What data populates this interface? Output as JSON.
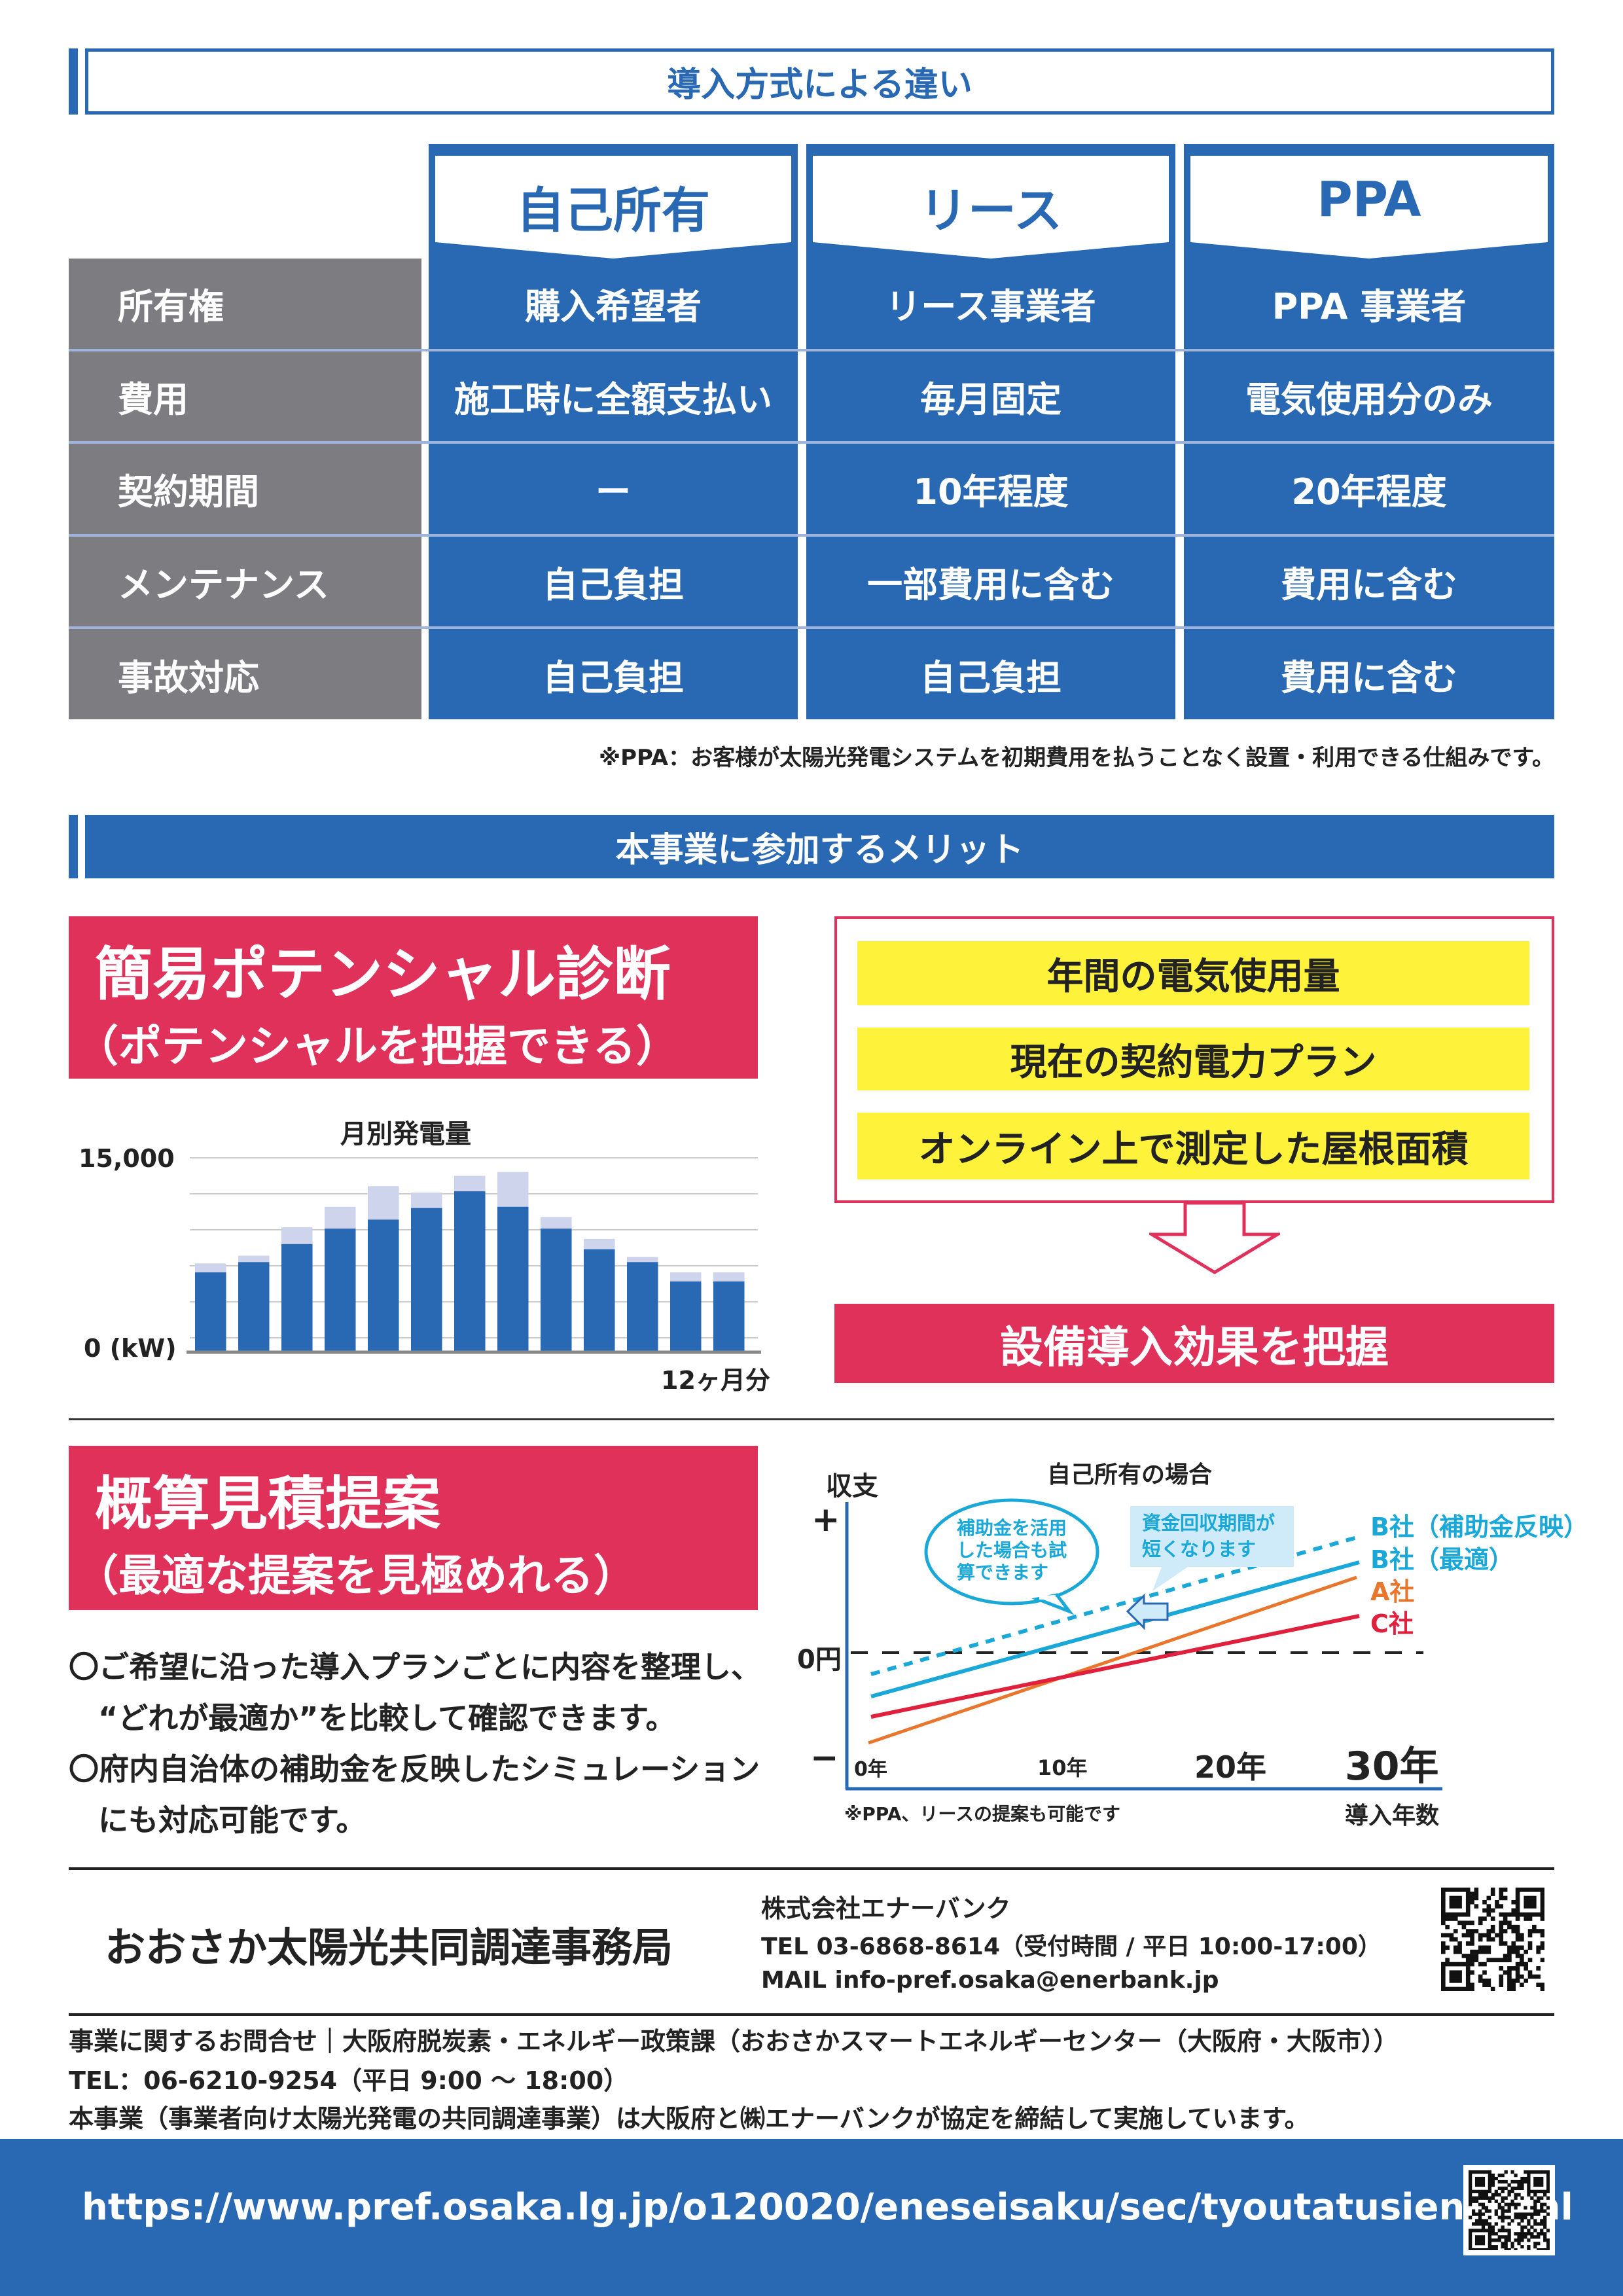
{
  "section1": {
    "title": "導入方式による違い"
  },
  "table": {
    "columns": [
      "自己所有",
      "リース",
      "PPA"
    ],
    "rows": [
      {
        "label": "所有権",
        "values": [
          "購入希望者",
          "リース事業者",
          "PPA 事業者"
        ]
      },
      {
        "label": "費用",
        "values": [
          "施工時に全額支払い",
          "毎月固定",
          "電気使用分のみ"
        ]
      },
      {
        "label": "契約期間",
        "values": [
          "ー",
          "10年程度",
          "20年程度"
        ]
      },
      {
        "label": "メンテナンス",
        "values": [
          "自己負担",
          "一部費用に含む",
          "費用に含む"
        ]
      },
      {
        "label": "事故対応",
        "values": [
          "自己負担",
          "自己負担",
          "費用に含む"
        ]
      }
    ],
    "note": "※PPA：お客様が太陽光発電システムを初期費用を払うことなく設置・利用できる仕組みです。"
  },
  "section2": {
    "title": "本事業に参加するメリット"
  },
  "merit1": {
    "title": "簡易ポテンシャル診断",
    "subtitle": "（ポテンシャルを把握できる）"
  },
  "inputs": [
    "年間の電気使用量",
    "現在の契約電力プラン",
    "オンライン上で測定した屋根面積"
  ],
  "result": "設備導入効果を把握",
  "merit2": {
    "title": "概算見積提案",
    "subtitle": "（最適な提案を見極めれる）"
  },
  "bullets": [
    {
      "line1": "〇ご希望に沿った導入プランごとに内容を整理し、",
      "line2": "“どれが最適か”を比較して確認できます。"
    },
    {
      "line1": "〇府内自治体の補助金を反映したシミュレーション",
      "line2": "にも対応可能です。"
    }
  ],
  "chart_data": {
    "type": "bar",
    "title": "月別発電量",
    "y_top_label": "15,000",
    "y_bottom_label": "0 (kW)",
    "xlabel": "12ヶ月分",
    "ylim": [
      0,
      15000
    ],
    "grid": true,
    "stacked": true,
    "colors": {
      "base": "#2968b3",
      "upper": "#cdd4ec"
    },
    "base_values": [
      6100,
      6900,
      8300,
      9500,
      10200,
      11100,
      12400,
      11200,
      9500,
      7900,
      6900,
      5400
    ],
    "total_values": [
      6800,
      7400,
      9600,
      11200,
      12800,
      12300,
      13600,
      13900,
      10400,
      8700,
      7300,
      6100
    ],
    "extra_bar": {
      "base": 5400,
      "total": 6100
    }
  },
  "diagram": {
    "title": "自己所有の場合",
    "ylabel": "収支",
    "plus": "+",
    "zero": "0円",
    "minus": "−",
    "xticks": [
      "0年",
      "10年",
      "20年",
      "30年"
    ],
    "xlabel": "導入年数",
    "note": "※PPA、リースの提案も可能です",
    "bubble": [
      "補助金を活用",
      "した場合も試",
      "算できます"
    ],
    "callout": [
      "資金回収期間が",
      "短くなります"
    ],
    "series": [
      {
        "name": "B社（補助金反映）",
        "color": "#1aa8d8",
        "style": "dashed"
      },
      {
        "name": "B社（最適）",
        "color": "#1aa8d8",
        "style": "solid"
      },
      {
        "name": "A社",
        "color": "#e8762c",
        "style": "solid"
      },
      {
        "name": "C社",
        "color": "#e0203c",
        "style": "solid"
      }
    ]
  },
  "footer": {
    "office": "おおさか太陽光共同調達事務局",
    "company": "株式会社エナーバンク",
    "tel": "TEL 03-6868-8614（受付時間 / 平日 10:00-17:00）",
    "mail": "MAIL info-pref.osaka@enerbank.jp",
    "contact": "事業に関するお問合せ｜大阪府脱炭素・エネルギー政策課（おおさかスマートエネルギーセンター（大阪府・大阪市））",
    "contact_tel": "TEL：06-6210-9254（平日 9:00 ～ 18:00）",
    "agreement": "本事業（事業者向け太陽光発電の共同調達事業）は大阪府と㈱エナーバンクが協定を締結して実施しています。",
    "url": "https://www.pref.osaka.lg.jp/o120020/eneseisaku/sec/tyoutatusien.html"
  },
  "colors": {
    "blue": "#2968b3",
    "gray": "#7d7c80",
    "red": "#e0315a",
    "yellow": "#fef23b"
  }
}
